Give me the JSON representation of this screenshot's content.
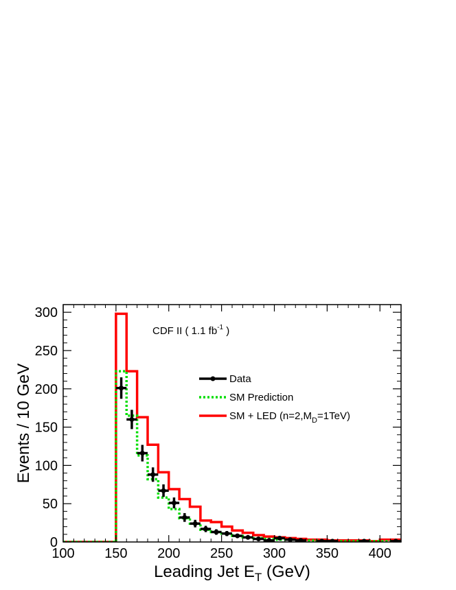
{
  "chart_data": {
    "type": "line",
    "xlabel_main": "Leading Jet E",
    "xlabel_sub": "T",
    "xlabel_unit": " (GeV)",
    "ylabel": "Events / 10 GeV",
    "xlim": [
      100,
      420
    ],
    "ylim": [
      0,
      310
    ],
    "x_ticks": [
      100,
      150,
      200,
      250,
      300,
      350,
      400
    ],
    "y_ticks": [
      0,
      50,
      100,
      150,
      200,
      250,
      300
    ],
    "annotation": {
      "main": "CDF II ( 1.1 fb",
      "sup": "-1",
      "end": " )"
    },
    "legend": {
      "position": "top-right",
      "data_label": "Data",
      "sm_label": "SM Prediction",
      "led_main": "SM + LED (n=2,M",
      "led_sub": "D",
      "led_end": "=1TeV)"
    },
    "bin_edges": [
      100,
      150,
      160,
      170,
      180,
      190,
      200,
      210,
      220,
      230,
      240,
      250,
      260,
      270,
      280,
      290,
      300,
      310,
      320,
      330,
      340,
      350,
      360,
      370,
      380,
      390,
      400,
      410,
      420
    ],
    "series": [
      {
        "name": "SM + LED (n=2,MD=1TeV)",
        "style": "histogram-solid",
        "color": "#ff0000",
        "values": [
          0,
          298,
          223,
          163,
          127,
          91,
          69,
          56,
          46,
          28,
          26,
          20,
          15,
          12,
          9,
          7,
          6,
          5,
          4,
          3,
          3,
          2,
          2,
          2,
          2,
          1,
          3,
          3
        ]
      },
      {
        "name": "SM Prediction",
        "style": "histogram-dotted",
        "color": "#00dd00",
        "values": [
          0,
          223,
          165,
          113,
          82,
          58,
          43,
          31,
          24,
          16,
          13,
          11,
          8,
          6,
          5,
          4,
          3,
          3,
          2,
          2,
          1,
          1,
          1,
          1,
          1,
          1,
          1,
          1
        ]
      },
      {
        "name": "Data",
        "style": "points",
        "color": "#000000",
        "x": [
          155,
          165,
          175,
          185,
          195,
          205,
          215,
          225,
          235,
          245,
          255,
          265,
          275,
          285,
          295,
          305,
          315,
          325,
          345,
          355,
          385,
          415
        ],
        "y": [
          201,
          160,
          116,
          88,
          67,
          51,
          32,
          24,
          17,
          13,
          11,
          8,
          6,
          4,
          2,
          5,
          3,
          2,
          1,
          1,
          1,
          1
        ],
        "yerr": [
          14,
          12.6,
          10.8,
          9.4,
          8.2,
          7.1,
          5.7,
          4.9,
          4.1,
          3.6,
          3.3,
          2.8,
          2.4,
          2,
          1.4,
          2.2,
          1.7,
          1.4,
          1,
          1,
          1,
          1
        ]
      }
    ]
  }
}
